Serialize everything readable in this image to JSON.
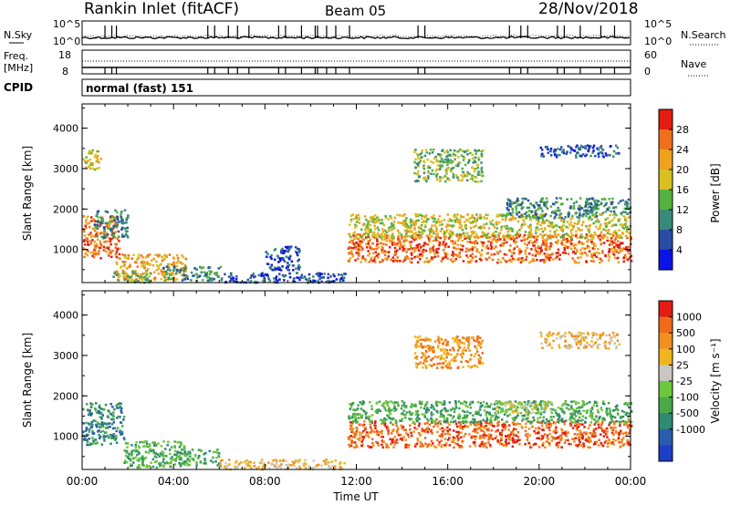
{
  "header": {
    "station": "Rankin Inlet (fitACF)",
    "beam": "Beam 05",
    "date": "28/Nov/2018"
  },
  "status_panels": {
    "nsky_label": "N.Sky",
    "nsky_ticks": [
      "10^5",
      "10^0"
    ],
    "nsearch_label": "N.Search",
    "nsearch_ticks": [
      "10^5",
      "10^0"
    ],
    "freq_label_1": "Freq.",
    "freq_label_2": "[MHz]",
    "freq_ticks": [
      "18",
      "8"
    ],
    "nave_label": "Nave",
    "nave_ticks": [
      "60",
      "0"
    ],
    "cpid_label": "CPID",
    "cpid_text": "normal (fast) 151"
  },
  "chart_data": [
    {
      "type": "heatmap",
      "quantity": "power",
      "xlabel": "",
      "ylabel": "Slant Range [km]",
      "xlim": [
        0,
        24
      ],
      "ylim": [
        180,
        4600
      ],
      "y_ticks": [
        "1000",
        "2000",
        "3000",
        "4000"
      ],
      "colorbar": {
        "label": "Power [dB]",
        "range": [
          0,
          32
        ],
        "ticks": [
          "4",
          "8",
          "12",
          "16",
          "20",
          "24",
          "28"
        ],
        "colors": [
          "#0a14e6",
          "#2a4ca6",
          "#3a8a7a",
          "#55b23e",
          "#d8c020",
          "#f0a21e",
          "#f0701a",
          "#e41c12"
        ]
      },
      "regions": [
        {
          "t": [
            0.0,
            1.6
          ],
          "r": [
            800,
            1850
          ],
          "level": 26
        },
        {
          "t": [
            0.5,
            2.0
          ],
          "r": [
            1300,
            2000
          ],
          "level": 10
        },
        {
          "t": [
            1.4,
            4.5
          ],
          "r": [
            250,
            900
          ],
          "level": 22
        },
        {
          "t": [
            1.3,
            3.0
          ],
          "r": [
            200,
            500
          ],
          "level": 14
        },
        {
          "t": [
            3.5,
            6.2
          ],
          "r": [
            250,
            600
          ],
          "level": 8
        },
        {
          "t": [
            6.0,
            11.5
          ],
          "r": [
            200,
            450
          ],
          "level": 6
        },
        {
          "t": [
            8.0,
            9.5
          ],
          "r": [
            500,
            1100
          ],
          "level": 5
        },
        {
          "t": [
            0.0,
            0.8
          ],
          "r": [
            3000,
            3500
          ],
          "level": 16
        },
        {
          "t": [
            11.6,
            24.0
          ],
          "r": [
            700,
            1400
          ],
          "level": 27
        },
        {
          "t": [
            11.6,
            24.0
          ],
          "r": [
            1300,
            1900
          ],
          "level": 18
        },
        {
          "t": [
            14.5,
            17.5
          ],
          "r": [
            2700,
            3500
          ],
          "level": 15
        },
        {
          "t": [
            18.5,
            22.5
          ],
          "r": [
            1800,
            2300
          ],
          "level": 9
        },
        {
          "t": [
            20.0,
            23.5
          ],
          "r": [
            3300,
            3600
          ],
          "level": 6
        },
        {
          "t": [
            22.0,
            24.0
          ],
          "r": [
            1900,
            2300
          ],
          "level": 11
        }
      ]
    },
    {
      "type": "heatmap",
      "quantity": "velocity",
      "xlabel": "Time UT",
      "ylabel": "Slant Range [km]",
      "xlim": [
        0,
        24
      ],
      "ylim": [
        180,
        4600
      ],
      "x_ticks": [
        "00:00",
        "04:00",
        "08:00",
        "12:00",
        "16:00",
        "20:00",
        "00:00"
      ],
      "y_ticks": [
        "1000",
        "2000",
        "3000",
        "4000"
      ],
      "colorbar": {
        "label": "Velocity [m s⁻¹]",
        "ticks": [
          "1000",
          "500",
          "100",
          "25",
          "-25",
          "-100",
          "-500",
          "-1000"
        ],
        "colors": [
          "#1e3ec8",
          "#2a5cb0",
          "#2e8a70",
          "#4aaa48",
          "#6cc83c",
          "#c8c8c0",
          "#f0b41e",
          "#f0901e",
          "#f06a1a",
          "#e41c12"
        ]
      },
      "regions": [
        {
          "t": [
            0.0,
            1.8
          ],
          "r": [
            800,
            1850
          ],
          "level": 2
        },
        {
          "t": [
            1.8,
            4.5
          ],
          "r": [
            250,
            900
          ],
          "level": 3
        },
        {
          "t": [
            4.0,
            6.0
          ],
          "r": [
            300,
            700
          ],
          "level": 3
        },
        {
          "t": [
            6.0,
            11.5
          ],
          "r": [
            200,
            450
          ],
          "level": 6
        },
        {
          "t": [
            11.6,
            24.0
          ],
          "r": [
            750,
            1400
          ],
          "level": 8
        },
        {
          "t": [
            11.6,
            24.0
          ],
          "r": [
            1350,
            1900
          ],
          "level": 3
        },
        {
          "t": [
            18.0,
            20.5
          ],
          "r": [
            1600,
            1900
          ],
          "level": 5
        },
        {
          "t": [
            14.5,
            17.5
          ],
          "r": [
            2700,
            3500
          ],
          "level": 7
        },
        {
          "t": [
            20.0,
            23.5
          ],
          "r": [
            3200,
            3600
          ],
          "level": 6
        }
      ]
    }
  ]
}
